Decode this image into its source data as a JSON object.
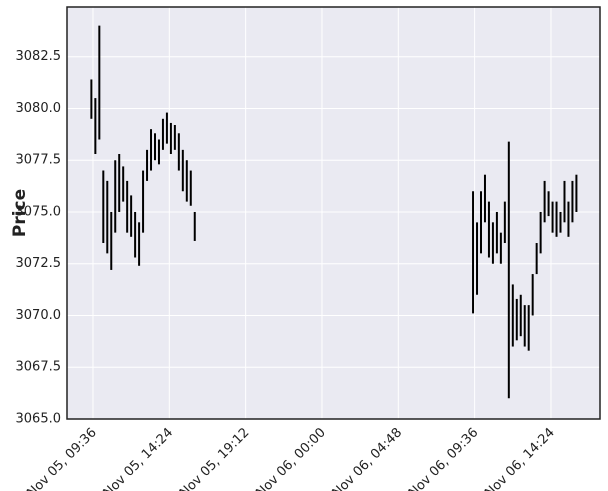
{
  "chart_data": {
    "type": "range",
    "ylabel": "Price",
    "color": "#000000",
    "grid": true,
    "xlim": [
      "Nov 05, 07:58",
      "Nov 06, 17:29"
    ],
    "xticks": [
      "Nov 05, 09:36",
      "Nov 05, 14:24",
      "Nov 05, 19:12",
      "Nov 06, 00:00",
      "Nov 06, 04:48",
      "Nov 06, 09:36",
      "Nov 06, 14:24"
    ],
    "ylim": [
      3065,
      3084.9
    ],
    "yticks": [
      {
        "value": 3065,
        "label": "3065.0"
      },
      {
        "value": 3067.5,
        "label": "3067.5"
      },
      {
        "value": 3070,
        "label": "3070.0"
      },
      {
        "value": 3072.5,
        "label": "3072.5"
      },
      {
        "value": 3075,
        "label": "3075.0"
      },
      {
        "value": 3077.5,
        "label": "3077.5"
      },
      {
        "value": 3080,
        "label": "3080.0"
      },
      {
        "value": 3082.5,
        "label": "3082.5"
      }
    ],
    "x": [
      "Nov 05, 09:30",
      "Nov 05, 09:45",
      "Nov 05, 10:00",
      "Nov 05, 10:15",
      "Nov 05, 10:30",
      "Nov 05, 10:45",
      "Nov 05, 11:00",
      "Nov 05, 11:15",
      "Nov 05, 11:30",
      "Nov 05, 11:45",
      "Nov 05, 12:00",
      "Nov 05, 12:15",
      "Nov 05, 12:30",
      "Nov 05, 12:45",
      "Nov 05, 13:00",
      "Nov 05, 13:15",
      "Nov 05, 13:30",
      "Nov 05, 13:45",
      "Nov 05, 14:00",
      "Nov 05, 14:15",
      "Nov 05, 14:30",
      "Nov 05, 14:45",
      "Nov 05, 15:00",
      "Nov 05, 15:15",
      "Nov 05, 15:30",
      "Nov 05, 15:45",
      "Nov 05, 16:00",
      "Nov 06, 09:30",
      "Nov 06, 09:45",
      "Nov 06, 10:00",
      "Nov 06, 10:15",
      "Nov 06, 10:30",
      "Nov 06, 10:45",
      "Nov 06, 11:00",
      "Nov 06, 11:15",
      "Nov 06, 11:30",
      "Nov 06, 11:45",
      "Nov 06, 12:00",
      "Nov 06, 12:15",
      "Nov 06, 12:30",
      "Nov 06, 12:45",
      "Nov 06, 13:00",
      "Nov 06, 13:15",
      "Nov 06, 13:30",
      "Nov 06, 13:45",
      "Nov 06, 14:00",
      "Nov 06, 14:15",
      "Nov 06, 14:30",
      "Nov 06, 14:45",
      "Nov 06, 15:00",
      "Nov 06, 15:15",
      "Nov 06, 15:30",
      "Nov 06, 15:45",
      "Nov 06, 16:00"
    ],
    "low": [
      3079.5,
      3077.8,
      3078.5,
      3073.5,
      3073.0,
      3072.2,
      3074.0,
      3075.0,
      3075.5,
      3074.0,
      3073.8,
      3072.8,
      3072.4,
      3074.0,
      3076.5,
      3077.0,
      3077.5,
      3077.3,
      3078.0,
      3078.3,
      3077.8,
      3078.0,
      3077.0,
      3076.0,
      3075.5,
      3075.3,
      3073.6,
      3070.1,
      3071.0,
      3073.0,
      3074.5,
      3072.8,
      3072.5,
      3073.0,
      3072.5,
      3073.5,
      3066.0,
      3068.5,
      3068.8,
      3069.0,
      3068.5,
      3068.3,
      3070.0,
      3072.0,
      3073.0,
      3074.5,
      3074.8,
      3074.0,
      3073.8,
      3074.0,
      3074.5,
      3073.8,
      3074.5,
      3075.0
    ],
    "high": [
      3081.4,
      3080.5,
      3084.0,
      3077.0,
      3076.5,
      3075.0,
      3077.5,
      3077.8,
      3077.2,
      3076.5,
      3075.8,
      3075.0,
      3074.5,
      3077.0,
      3078.0,
      3079.0,
      3078.8,
      3078.5,
      3079.5,
      3079.8,
      3079.3,
      3079.2,
      3078.8,
      3078.0,
      3077.5,
      3077.0,
      3075.0,
      3076.0,
      3074.5,
      3076.0,
      3076.8,
      3075.5,
      3074.5,
      3075.0,
      3074.0,
      3075.5,
      3078.4,
      3071.5,
      3070.8,
      3071.0,
      3070.5,
      3070.5,
      3072.0,
      3073.5,
      3075.0,
      3076.5,
      3076.0,
      3075.5,
      3075.5,
      3075.0,
      3076.5,
      3075.5,
      3076.5,
      3076.8
    ]
  }
}
